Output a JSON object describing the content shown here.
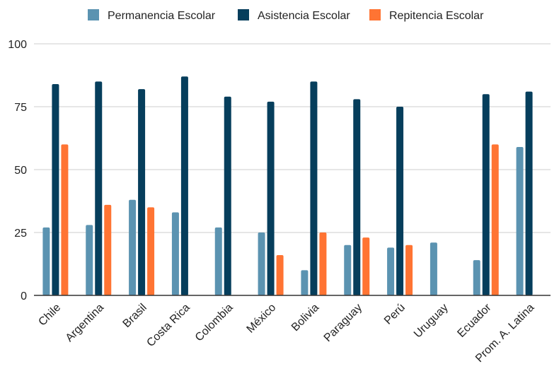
{
  "chart_data": {
    "type": "bar",
    "title": "",
    "xlabel": "",
    "ylabel": "",
    "ylim": [
      0,
      100
    ],
    "yticks": [
      0,
      25,
      50,
      75,
      100
    ],
    "grid": true,
    "legend_position": "top-center",
    "categories": [
      "Chile",
      "Argentina",
      "Brasil",
      "Costa Rica",
      "Colombia",
      "México",
      "Bolivia",
      "Paraguay",
      "Perú",
      "Uruguay",
      "Ecuador",
      "Prom. A. Latina"
    ],
    "series": [
      {
        "name": "Permanencia Escolar",
        "color": "#5b93b1",
        "values": [
          27,
          28,
          38,
          33,
          27,
          25,
          10,
          20,
          19,
          21,
          14,
          59
        ]
      },
      {
        "name": "Asistencia Escolar",
        "color": "#063e5c",
        "values": [
          84,
          85,
          82,
          87,
          79,
          77,
          85,
          78,
          75,
          null,
          80,
          81
        ]
      },
      {
        "name": "Repitencia Escolar",
        "color": "#ff7433",
        "values": [
          60,
          36,
          35,
          null,
          null,
          16,
          25,
          23,
          20,
          null,
          60,
          null
        ]
      }
    ]
  }
}
